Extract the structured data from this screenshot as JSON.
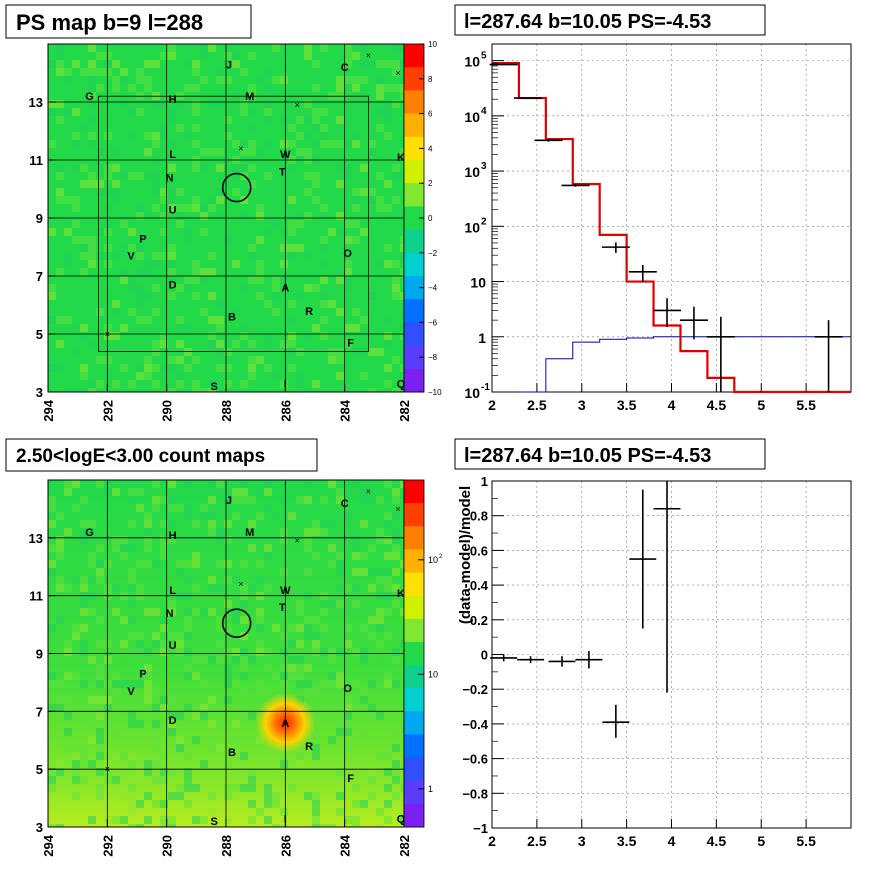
{
  "panels": {
    "tl": {
      "title": "PS map b=9 l=288"
    },
    "tr": {
      "title": "l=287.64 b=10.05 PS=-4.53"
    },
    "bl": {
      "title": "2.50<logE<3.00 count maps"
    },
    "br": {
      "title": "l=287.64 b=10.05 PS=-4.53"
    }
  },
  "colors": {
    "map_bg": "#22d94a",
    "data": "#000000",
    "model_total": "#e00000",
    "model_bg": "#0000c0",
    "grid": "#7f7f7f"
  },
  "maps": {
    "x_ticks": [
      "294",
      "292",
      "290",
      "288",
      "286",
      "284",
      "282"
    ],
    "y_ticks": [
      "3",
      "5",
      "7",
      "9",
      "11",
      "13"
    ],
    "source_labels": [
      "J",
      "C",
      "G",
      "H",
      "M",
      "L",
      "W",
      "K",
      "N",
      "T",
      "U",
      "P",
      "V",
      "O",
      "D",
      "A",
      "B",
      "R",
      "F",
      "S",
      "I",
      "Q"
    ]
  },
  "chart_data": [
    {
      "type": "heatmap",
      "title": "PS map b=9 l=288",
      "xlim": [
        294,
        282
      ],
      "ylim": [
        3,
        15
      ],
      "colorbar": {
        "min": -10,
        "max": 10,
        "ticks": [
          "10",
          "8",
          "6",
          "4",
          "2",
          "0",
          "−2",
          "−4",
          "−6",
          "−8",
          "−10"
        ]
      },
      "circle_center": {
        "l": 287.64,
        "b": 10.05
      },
      "sources": [
        {
          "label": "J",
          "l": 287.9,
          "b": 14.3
        },
        {
          "label": "C",
          "l": 284.0,
          "b": 14.2
        },
        {
          "label": "G",
          "l": 292.6,
          "b": 13.2
        },
        {
          "label": "H",
          "l": 289.8,
          "b": 13.1
        },
        {
          "label": "M",
          "l": 287.2,
          "b": 13.2
        },
        {
          "label": "L",
          "l": 289.8,
          "b": 11.2
        },
        {
          "label": "W",
          "l": 286.0,
          "b": 11.2
        },
        {
          "label": "K",
          "l": 282.1,
          "b": 11.1
        },
        {
          "label": "N",
          "l": 289.9,
          "b": 10.4
        },
        {
          "label": "T",
          "l": 286.1,
          "b": 10.6
        },
        {
          "label": "U",
          "l": 289.8,
          "b": 9.3
        },
        {
          "label": "P",
          "l": 290.8,
          "b": 8.3
        },
        {
          "label": "V",
          "l": 291.2,
          "b": 7.7
        },
        {
          "label": "O",
          "l": 283.9,
          "b": 7.8
        },
        {
          "label": "D",
          "l": 289.8,
          "b": 6.7
        },
        {
          "label": "A",
          "l": 286.0,
          "b": 6.6
        },
        {
          "label": "B",
          "l": 287.8,
          "b": 5.6
        },
        {
          "label": "R",
          "l": 285.2,
          "b": 5.8
        },
        {
          "label": "F",
          "l": 283.8,
          "b": 4.7
        },
        {
          "label": "S",
          "l": 288.4,
          "b": 3.2
        },
        {
          "label": "I",
          "l": 286.0,
          "b": 3.3
        },
        {
          "label": "Q",
          "l": 282.1,
          "b": 3.3
        }
      ]
    },
    {
      "type": "line",
      "title": "l=287.64 b=10.05 PS=-4.53",
      "xlim": [
        2,
        6
      ],
      "ylim": [
        0.1,
        200000
      ],
      "log_y": true,
      "grid": true,
      "x_ticks": [
        "2",
        "2.5",
        "3",
        "3.5",
        "4",
        "4.5",
        "5",
        "5.5"
      ],
      "y_ticks": [
        "10^-1",
        "1",
        "10",
        "10^2",
        "10^3",
        "10^4",
        "10^5"
      ],
      "data_points": {
        "x": [
          2.13,
          2.4,
          2.63,
          2.93,
          3.38,
          3.68,
          3.95,
          4.25,
          4.55,
          5.75
        ],
        "y": [
          85000,
          21000,
          3600,
          550,
          42,
          15,
          3,
          2,
          1,
          1
        ],
        "yerr_low": [
          83000,
          20500,
          3400,
          520,
          33,
          10,
          1.5,
          0.9,
          0.1,
          0.1
        ],
        "yerr_high": [
          87000,
          21500,
          3800,
          580,
          51,
          20,
          5,
          3.5,
          2.3,
          2.0
        ]
      },
      "model_total": {
        "edges": [
          2,
          2.3,
          2.6,
          2.9,
          3.2,
          3.5,
          3.8,
          4.1,
          4.4,
          4.7,
          6
        ],
        "values": [
          90000,
          21000,
          3800,
          580,
          70,
          10,
          1.6,
          0.55,
          0.18,
          0.1
        ]
      },
      "model_bg": {
        "edges": [
          2.3,
          2.6,
          2.9,
          3.2,
          3.5,
          3.8,
          4.1,
          6
        ],
        "values": [
          0.1,
          0.4,
          0.8,
          0.9,
          0.95,
          1.0,
          1.0
        ]
      }
    },
    {
      "type": "heatmap",
      "title": "2.50<logE<3.00 count maps",
      "xlim": [
        294,
        282
      ],
      "ylim": [
        3,
        15
      ],
      "colorbar": {
        "log": true,
        "ticks": [
          "10^2",
          "10",
          "1"
        ]
      },
      "hotspot": {
        "l": 286.0,
        "b": 6.6
      }
    },
    {
      "type": "scatter",
      "title": "l=287.64 b=10.05 PS=-4.53",
      "ylabel": "(data-model)/model",
      "xlim": [
        2,
        6
      ],
      "ylim": [
        -1,
        1
      ],
      "grid": true,
      "x_ticks": [
        "2",
        "2.5",
        "3",
        "3.5",
        "4",
        "4.5",
        "5",
        "5.5"
      ],
      "y_ticks": [
        "1",
        "0.8",
        "0.6",
        "0.4",
        "0.2",
        "0",
        "−0.2",
        "−0.4",
        "−0.6",
        "−0.8",
        "−1"
      ],
      "points": {
        "x": [
          2.13,
          2.43,
          2.78,
          3.08,
          3.38,
          3.68,
          3.95
        ],
        "xerr": [
          0.15,
          0.15,
          0.15,
          0.15,
          0.15,
          0.15,
          0.15
        ],
        "y": [
          -0.02,
          -0.03,
          -0.04,
          -0.03,
          -0.39,
          0.55,
          0.84
        ],
        "ylo": [
          -0.04,
          -0.05,
          -0.07,
          -0.08,
          -0.48,
          0.15,
          -0.22
        ],
        "yhi": [
          0.0,
          -0.01,
          -0.01,
          0.02,
          -0.29,
          0.95,
          1.0
        ]
      }
    }
  ]
}
